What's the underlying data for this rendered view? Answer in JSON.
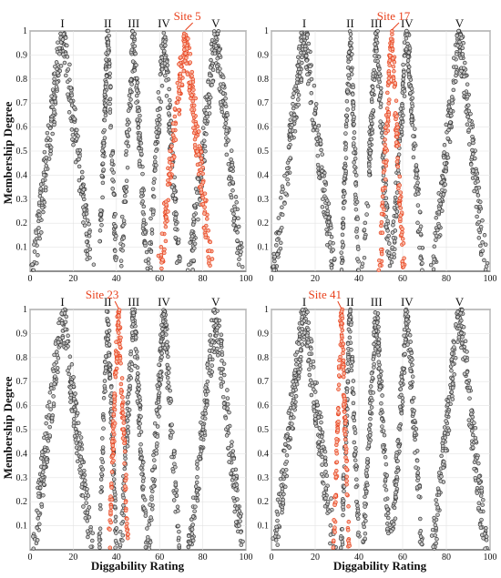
{
  "ylabel": "Membership Degree",
  "xlabel": "Diggability Rating",
  "colors": {
    "class_points": "#3a3a3a",
    "site_points": "#e8401c",
    "site_label": "#e8401c"
  },
  "chart_data": [
    {
      "type": "scatter",
      "panel": "top-left",
      "xlim": [
        0,
        100
      ],
      "ylim": [
        0,
        1
      ],
      "xticks": [
        0,
        20,
        40,
        60,
        80,
        100
      ],
      "yticks": [
        0.1,
        0.2,
        0.3,
        0.4,
        0.5,
        0.6,
        0.7,
        0.8,
        0.9,
        1
      ],
      "grid": true,
      "classes": [
        {
          "name": "I",
          "peak": 15,
          "spread": 13.5
        },
        {
          "name": "II",
          "peak": 36,
          "spread": 4
        },
        {
          "name": "III",
          "peak": 48,
          "spread": 6
        },
        {
          "name": "IV",
          "peak": 62,
          "spread": 7
        },
        {
          "name": "V",
          "peak": 86,
          "spread": 12
        }
      ],
      "site": {
        "name": "Site 5",
        "peak": 72,
        "spread": 12
      }
    },
    {
      "type": "scatter",
      "panel": "top-right",
      "xlim": [
        0,
        100
      ],
      "ylim": [
        0,
        1
      ],
      "xticks": [
        0,
        20,
        40,
        60,
        80,
        100
      ],
      "yticks": [
        0.1,
        0.2,
        0.3,
        0.4,
        0.5,
        0.6,
        0.7,
        0.8,
        0.9,
        1
      ],
      "grid": true,
      "classes": [
        {
          "name": "I",
          "peak": 15,
          "spread": 13.5
        },
        {
          "name": "II",
          "peak": 36,
          "spread": 4
        },
        {
          "name": "III",
          "peak": 48,
          "spread": 6
        },
        {
          "name": "IV",
          "peak": 62,
          "spread": 7
        },
        {
          "name": "V",
          "peak": 86,
          "spread": 12
        }
      ],
      "site": {
        "name": "Site 17",
        "peak": 55,
        "spread": 5.5
      }
    },
    {
      "type": "scatter",
      "panel": "bottom-left",
      "xlim": [
        0,
        100
      ],
      "ylim": [
        0,
        1
      ],
      "xticks": [
        0,
        20,
        40,
        60,
        80,
        100
      ],
      "yticks": [
        0.1,
        0.2,
        0.3,
        0.4,
        0.5,
        0.6,
        0.7,
        0.8,
        0.9,
        1
      ],
      "grid": true,
      "classes": [
        {
          "name": "I",
          "peak": 15,
          "spread": 13.5
        },
        {
          "name": "II",
          "peak": 36,
          "spread": 4
        },
        {
          "name": "III",
          "peak": 48,
          "spread": 6
        },
        {
          "name": "IV",
          "peak": 62,
          "spread": 7
        },
        {
          "name": "V",
          "peak": 86,
          "spread": 12
        }
      ],
      "site": {
        "name": "Site 23",
        "peak": 41,
        "spread": 4.5
      }
    },
    {
      "type": "scatter",
      "panel": "bottom-right",
      "xlim": [
        0,
        100
      ],
      "ylim": [
        0,
        1
      ],
      "xticks": [
        0,
        20,
        40,
        60,
        80,
        100
      ],
      "yticks": [
        0.1,
        0.2,
        0.3,
        0.4,
        0.5,
        0.6,
        0.7,
        0.8,
        0.9,
        1
      ],
      "grid": true,
      "classes": [
        {
          "name": "I",
          "peak": 15,
          "spread": 13.5
        },
        {
          "name": "II",
          "peak": 36,
          "spread": 4
        },
        {
          "name": "III",
          "peak": 48,
          "spread": 6
        },
        {
          "name": "IV",
          "peak": 62,
          "spread": 7
        },
        {
          "name": "V",
          "peak": 86,
          "spread": 12
        }
      ],
      "site": {
        "name": "Site 41",
        "peak": 32,
        "spread": 3.5
      }
    }
  ]
}
